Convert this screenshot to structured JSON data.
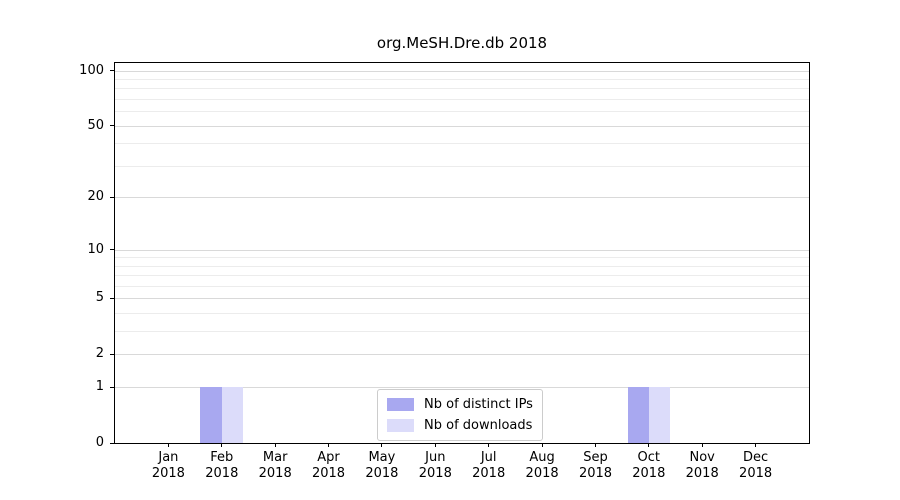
{
  "chart_data": {
    "type": "bar",
    "title": "org.MeSH.Dre.db 2018",
    "categories": [
      "Jan 2018",
      "Feb 2018",
      "Mar 2018",
      "Apr 2018",
      "May 2018",
      "Jun 2018",
      "Jul 2018",
      "Aug 2018",
      "Sep 2018",
      "Oct 2018",
      "Nov 2018",
      "Dec 2018"
    ],
    "series": [
      {
        "name": "Nb of distinct IPs",
        "color": "#a8a8f0",
        "values": [
          0,
          1,
          0,
          0,
          0,
          0,
          0,
          0,
          0,
          1,
          0,
          0
        ]
      },
      {
        "name": "Nb of downloads",
        "color": "#dcdcfa",
        "values": [
          0,
          1,
          0,
          0,
          0,
          0,
          0,
          0,
          0,
          1,
          0,
          0
        ]
      }
    ],
    "yscale": "log1p",
    "ylim": [
      0,
      110
    ],
    "ytick_values": [
      0,
      1,
      2,
      5,
      10,
      20,
      50,
      100
    ],
    "minor_ytick_values": [
      3,
      4,
      6,
      7,
      8,
      9,
      30,
      40,
      60,
      70,
      80,
      90
    ],
    "xlabel": "",
    "ylabel": "",
    "grid": "horizontal",
    "legend_position": "lower center",
    "bar_width_fraction": 0.4,
    "axis_color": "#000000",
    "major_grid_color": "#d9d9d9",
    "minor_grid_color": "#ececec"
  }
}
